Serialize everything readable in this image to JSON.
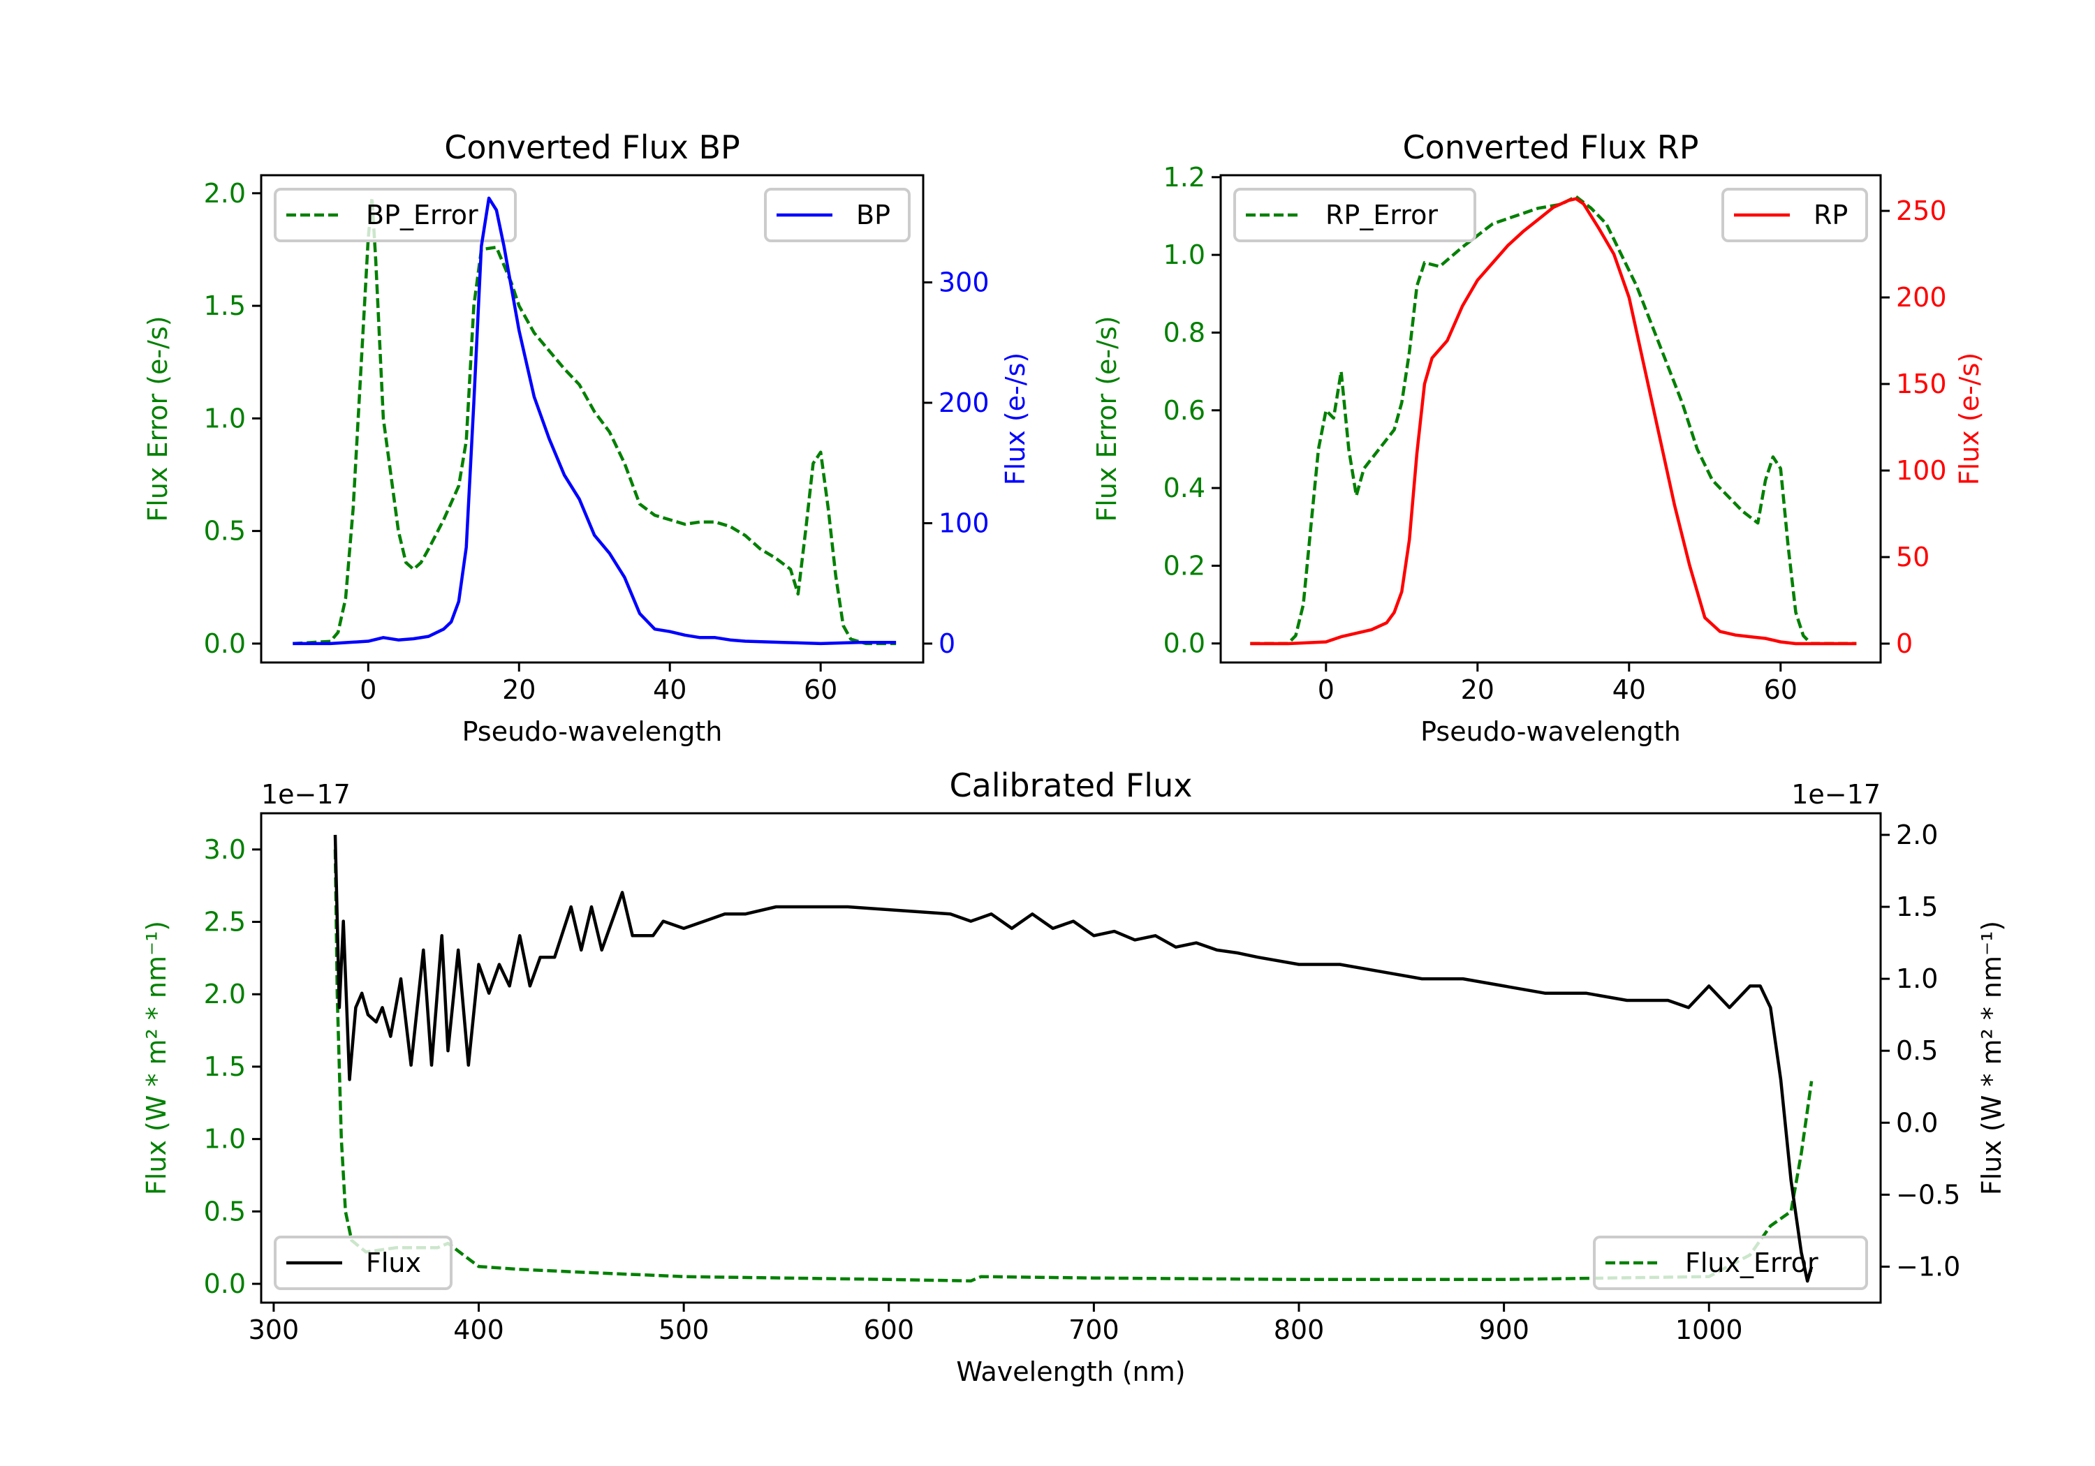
{
  "chart_data": [
    {
      "type": "line",
      "title": "Converted Flux BP",
      "xlabel": "Pseudo-wavelength",
      "ylabel_left": "Flux Error (e-/s)",
      "ylabel_right": "Flux (e-/s)",
      "xlim": [
        -14.2,
        73.6
      ],
      "ylim_left": [
        -0.084,
        2.08
      ],
      "ylim_right": [
        -15.7,
        389
      ],
      "right_color": "#0000ff",
      "left_color": "#008000",
      "xticks": [
        {
          "v": 0,
          "label": "0"
        },
        {
          "v": 20,
          "label": "20"
        },
        {
          "v": 40,
          "label": "40"
        },
        {
          "v": 60,
          "label": "60"
        }
      ],
      "yticks_left": [
        {
          "v": 0,
          "label": "0.0"
        },
        {
          "v": 0.5,
          "label": "0.5"
        },
        {
          "v": 1.0,
          "label": "1.0"
        },
        {
          "v": 1.5,
          "label": "1.5"
        },
        {
          "v": 2.0,
          "label": "2.0"
        }
      ],
      "yticks_right": [
        {
          "v": 0,
          "label": "0"
        },
        {
          "v": 100,
          "label": "100"
        },
        {
          "v": 200,
          "label": "200"
        },
        {
          "v": 300,
          "label": "300"
        }
      ],
      "offset_left": "",
      "offset_right": "",
      "series": [
        {
          "name": "BP_Error",
          "axis": "left",
          "color": "#008000",
          "style": "dashed",
          "legend": "upper-left",
          "x": [
            -10,
            -5,
            -4,
            -3,
            -2,
            -1,
            0,
            0.5,
            1,
            2,
            3,
            4,
            5,
            6,
            7,
            8,
            10,
            12,
            13,
            14,
            15,
            17,
            19,
            20,
            22,
            24,
            26,
            28,
            30,
            32,
            34,
            36,
            38,
            40,
            42,
            44,
            46,
            48,
            50,
            52,
            54,
            56,
            57,
            58,
            59,
            60,
            61,
            62,
            63,
            64,
            66,
            70
          ],
          "y": [
            0,
            0.01,
            0.05,
            0.2,
            0.6,
            1.2,
            1.8,
            1.98,
            1.7,
            1.0,
            0.75,
            0.5,
            0.36,
            0.33,
            0.36,
            0.42,
            0.55,
            0.7,
            0.9,
            1.5,
            1.75,
            1.76,
            1.6,
            1.5,
            1.38,
            1.3,
            1.22,
            1.15,
            1.03,
            0.94,
            0.8,
            0.62,
            0.57,
            0.55,
            0.53,
            0.54,
            0.54,
            0.52,
            0.48,
            0.42,
            0.38,
            0.33,
            0.22,
            0.5,
            0.8,
            0.85,
            0.6,
            0.3,
            0.08,
            0.02,
            0,
            0
          ]
        },
        {
          "name": "BP",
          "axis": "right",
          "color": "#0000ff",
          "style": "solid",
          "legend": "upper-right",
          "x": [
            -10,
            -5,
            0,
            2,
            4,
            6,
            8,
            10,
            11,
            12,
            13,
            14,
            15,
            16,
            17,
            18,
            19,
            20,
            22,
            24,
            26,
            28,
            30,
            32,
            34,
            36,
            38,
            40,
            42,
            44,
            46,
            48,
            50,
            55,
            60,
            65,
            70
          ],
          "y": [
            0,
            0,
            2,
            5,
            3,
            4,
            6,
            12,
            18,
            35,
            80,
            200,
            330,
            370,
            360,
            330,
            295,
            260,
            205,
            170,
            140,
            120,
            90,
            75,
            55,
            25,
            12,
            10,
            7,
            5,
            5,
            3,
            2,
            1,
            0,
            1,
            1
          ]
        }
      ]
    },
    {
      "type": "line",
      "title": "Converted Flux RP",
      "xlabel": "Pseudo-wavelength",
      "ylabel_left": "Flux Error (e-/s)",
      "ylabel_right": "Flux (e-/s)",
      "xlim": [
        -13.9,
        73.2
      ],
      "ylim_left": [
        -0.049,
        1.205
      ],
      "ylim_right": [
        -10.9,
        270.6
      ],
      "right_color": "#ff0000",
      "left_color": "#008000",
      "xticks": [
        {
          "v": 0,
          "label": "0"
        },
        {
          "v": 20,
          "label": "20"
        },
        {
          "v": 40,
          "label": "40"
        },
        {
          "v": 60,
          "label": "60"
        }
      ],
      "yticks_left": [
        {
          "v": 0,
          "label": "0.0"
        },
        {
          "v": 0.2,
          "label": "0.2"
        },
        {
          "v": 0.4,
          "label": "0.4"
        },
        {
          "v": 0.6,
          "label": "0.6"
        },
        {
          "v": 0.8,
          "label": "0.8"
        },
        {
          "v": 1.0,
          "label": "1.0"
        },
        {
          "v": 1.2,
          "label": "1.2"
        }
      ],
      "yticks_right": [
        {
          "v": 0,
          "label": "0"
        },
        {
          "v": 50,
          "label": "50"
        },
        {
          "v": 100,
          "label": "100"
        },
        {
          "v": 150,
          "label": "150"
        },
        {
          "v": 200,
          "label": "200"
        },
        {
          "v": 250,
          "label": "250"
        }
      ],
      "offset_left": "",
      "offset_right": "",
      "series": [
        {
          "name": "RP_Error",
          "axis": "left",
          "color": "#008000",
          "style": "dashed",
          "legend": "upper-left",
          "x": [
            -10,
            -5,
            -4,
            -3,
            -2,
            -1,
            0,
            1,
            2,
            3,
            4,
            5,
            7,
            9,
            10,
            11,
            12,
            13,
            15,
            18,
            20,
            22,
            25,
            28,
            31,
            33,
            35,
            37,
            39,
            41,
            43,
            45,
            47,
            49,
            51,
            53,
            55,
            57,
            58,
            59,
            60,
            61,
            62,
            63,
            64,
            70
          ],
          "y": [
            0,
            0,
            0.02,
            0.1,
            0.3,
            0.5,
            0.6,
            0.58,
            0.7,
            0.5,
            0.38,
            0.45,
            0.5,
            0.55,
            0.62,
            0.75,
            0.92,
            0.98,
            0.97,
            1.02,
            1.05,
            1.08,
            1.1,
            1.12,
            1.13,
            1.15,
            1.12,
            1.08,
            1.0,
            0.92,
            0.82,
            0.72,
            0.62,
            0.5,
            0.42,
            0.38,
            0.34,
            0.31,
            0.42,
            0.48,
            0.45,
            0.25,
            0.08,
            0.02,
            0,
            0
          ]
        },
        {
          "name": "RP",
          "axis": "right",
          "color": "#ff0000",
          "style": "solid",
          "legend": "upper-right",
          "x": [
            -10,
            -5,
            0,
            2,
            4,
            6,
            8,
            9,
            10,
            11,
            12,
            13,
            14,
            16,
            18,
            20,
            22,
            24,
            26,
            28,
            30,
            32,
            33,
            34,
            36,
            38,
            40,
            42,
            44,
            46,
            48,
            50,
            52,
            54,
            56,
            58,
            60,
            62,
            70
          ],
          "y": [
            0,
            0,
            1,
            4,
            6,
            8,
            12,
            18,
            30,
            60,
            110,
            150,
            165,
            175,
            195,
            210,
            220,
            230,
            238,
            245,
            252,
            256,
            257,
            254,
            240,
            225,
            200,
            160,
            120,
            80,
            45,
            15,
            7,
            5,
            4,
            3,
            1,
            0,
            0
          ]
        }
      ]
    },
    {
      "type": "line",
      "title": "Calibrated Flux",
      "xlabel": "Wavelength (nm)",
      "ylabel_left": "Flux (W * m² * nm⁻¹)",
      "ylabel_right": "Flux (W * m² * nm⁻¹)",
      "xlim": [
        293.9,
        1083.7
      ],
      "ylim_left": [
        -0.13,
        3.25
      ],
      "ylim_right": [
        -1.25,
        2.15
      ],
      "right_color": "#000000",
      "left_color": "#008000",
      "xticks": [
        {
          "v": 300,
          "label": "300"
        },
        {
          "v": 400,
          "label": "400"
        },
        {
          "v": 500,
          "label": "500"
        },
        {
          "v": 600,
          "label": "600"
        },
        {
          "v": 700,
          "label": "700"
        },
        {
          "v": 800,
          "label": "800"
        },
        {
          "v": 900,
          "label": "900"
        },
        {
          "v": 1000,
          "label": "1000"
        }
      ],
      "yticks_left": [
        {
          "v": 0,
          "label": "0.0"
        },
        {
          "v": 0.5,
          "label": "0.5"
        },
        {
          "v": 1.0,
          "label": "1.0"
        },
        {
          "v": 1.5,
          "label": "1.5"
        },
        {
          "v": 2.0,
          "label": "2.0"
        },
        {
          "v": 2.5,
          "label": "2.5"
        },
        {
          "v": 3.0,
          "label": "3.0"
        }
      ],
      "yticks_right": [
        {
          "v": -1.0,
          "label": "−1.0"
        },
        {
          "v": -0.5,
          "label": "−0.5"
        },
        {
          "v": 0,
          "label": "0.0"
        },
        {
          "v": 0.5,
          "label": "0.5"
        },
        {
          "v": 1.0,
          "label": "1.0"
        },
        {
          "v": 1.5,
          "label": "1.5"
        },
        {
          "v": 2.0,
          "label": "2.0"
        }
      ],
      "offset_left": "1e−17",
      "offset_right": "1e−17",
      "series": [
        {
          "name": "Flux_Error",
          "axis": "left",
          "color": "#008000",
          "style": "dashed",
          "legend": "lower-right",
          "x": [
            330,
            331,
            333,
            335,
            338,
            345,
            360,
            380,
            385,
            400,
            420,
            450,
            500,
            600,
            640,
            645,
            700,
            800,
            900,
            1000,
            1020,
            1030,
            1040,
            1045,
            1050
          ],
          "y": [
            3.0,
            2.0,
            1.0,
            0.5,
            0.3,
            0.22,
            0.25,
            0.25,
            0.28,
            0.12,
            0.1,
            0.08,
            0.05,
            0.03,
            0.02,
            0.05,
            0.04,
            0.03,
            0.03,
            0.05,
            0.2,
            0.4,
            0.5,
            0.9,
            1.4
          ]
        },
        {
          "name": "Flux",
          "axis": "right",
          "color": "#000000",
          "style": "solid",
          "legend": "lower-left",
          "x": [
            330,
            332,
            334,
            337,
            340,
            343,
            346,
            350,
            353,
            357,
            362,
            367,
            373,
            377,
            382,
            385,
            390,
            395,
            400,
            405,
            410,
            415,
            420,
            425,
            430,
            437,
            445,
            450,
            455,
            460,
            470,
            475,
            485,
            490,
            500,
            510,
            520,
            530,
            545,
            560,
            580,
            600,
            630,
            640,
            650,
            660,
            670,
            680,
            690,
            700,
            710,
            720,
            730,
            740,
            750,
            760,
            770,
            780,
            800,
            820,
            840,
            860,
            880,
            900,
            920,
            940,
            960,
            980,
            990,
            1000,
            1010,
            1020,
            1025,
            1030,
            1035,
            1040,
            1045,
            1048,
            1050
          ],
          "y": [
            2.0,
            0.8,
            1.4,
            0.3,
            0.8,
            0.9,
            0.75,
            0.7,
            0.8,
            0.6,
            1.0,
            0.4,
            1.2,
            0.4,
            1.3,
            0.5,
            1.2,
            0.4,
            1.1,
            0.9,
            1.1,
            0.95,
            1.3,
            0.95,
            1.15,
            1.15,
            1.5,
            1.2,
            1.5,
            1.2,
            1.6,
            1.3,
            1.3,
            1.4,
            1.35,
            1.4,
            1.45,
            1.45,
            1.5,
            1.5,
            1.5,
            1.48,
            1.45,
            1.4,
            1.45,
            1.35,
            1.45,
            1.35,
            1.4,
            1.3,
            1.33,
            1.27,
            1.3,
            1.22,
            1.25,
            1.2,
            1.18,
            1.15,
            1.1,
            1.1,
            1.05,
            1.0,
            1.0,
            0.95,
            0.9,
            0.9,
            0.85,
            0.85,
            0.8,
            0.95,
            0.8,
            0.95,
            0.95,
            0.8,
            0.3,
            -0.4,
            -0.9,
            -1.1,
            -1.0
          ]
        }
      ]
    }
  ]
}
